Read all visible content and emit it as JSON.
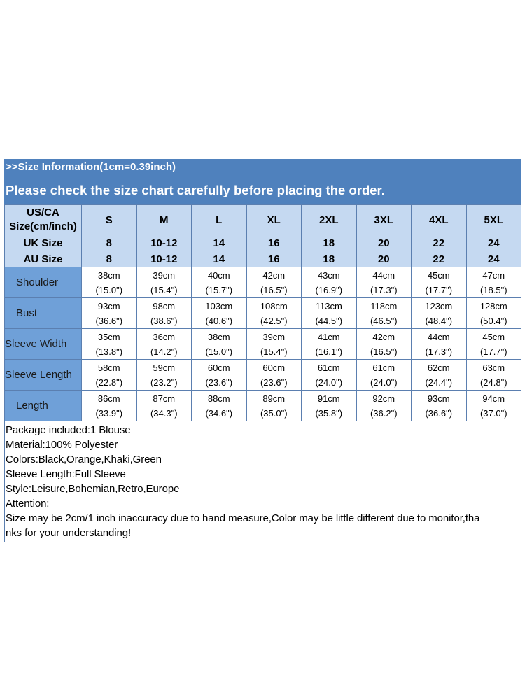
{
  "header": {
    "info": ">>Size Information(1cm=0.39inch)",
    "notice": "Please check the size chart carefully before placing the order."
  },
  "table": {
    "corner_line1": "US/CA",
    "corner_line2": "Size(cm/inch)",
    "sizes": [
      "S",
      "M",
      "L",
      "XL",
      "2XL",
      "3XL",
      "4XL",
      "5XL"
    ],
    "uk": {
      "label": "UK Size",
      "values": [
        "8",
        "10-12",
        "14",
        "16",
        "18",
        "20",
        "22",
        "24"
      ]
    },
    "au": {
      "label": "AU Size",
      "values": [
        "8",
        "10-12",
        "14",
        "16",
        "18",
        "20",
        "22",
        "24"
      ]
    },
    "measurements": [
      {
        "label": "Shoulder",
        "cm": [
          "38cm",
          "39cm",
          "40cm",
          "42cm",
          "43cm",
          "44cm",
          "45cm",
          "47cm"
        ],
        "inch": [
          "(15.0\")",
          "(15.4\")",
          "(15.7\")",
          "(16.5\")",
          "(16.9\")",
          "(17.3\")",
          "(17.7\")",
          "(18.5\")"
        ]
      },
      {
        "label": "Bust",
        "cm": [
          "93cm",
          "98cm",
          "103cm",
          "108cm",
          "113cm",
          "118cm",
          "123cm",
          "128cm"
        ],
        "inch": [
          "(36.6\")",
          "(38.6\")",
          "(40.6\")",
          "(42.5\")",
          "(44.5\")",
          "(46.5\")",
          "(48.4\")",
          "(50.4\")"
        ]
      },
      {
        "label": "Sleeve Width",
        "cm": [
          "35cm",
          "36cm",
          "38cm",
          "39cm",
          "41cm",
          "42cm",
          "44cm",
          "45cm"
        ],
        "inch": [
          "(13.8\")",
          "(14.2\")",
          "(15.0\")",
          "(15.4\")",
          "(16.1\")",
          "(16.5\")",
          "(17.3\")",
          "(17.7\")"
        ]
      },
      {
        "label": "Sleeve Length",
        "cm": [
          "58cm",
          "59cm",
          "60cm",
          "60cm",
          "61cm",
          "61cm",
          "62cm",
          "63cm"
        ],
        "inch": [
          "(22.8\")",
          "(23.2\")",
          "(23.6\")",
          "(23.6\")",
          "(24.0\")",
          "(24.0\")",
          "(24.4\")",
          "(24.8\")"
        ]
      },
      {
        "label": "Length",
        "cm": [
          "86cm",
          "87cm",
          "88cm",
          "89cm",
          "91cm",
          "92cm",
          "93cm",
          "94cm"
        ],
        "inch": [
          "(33.9\")",
          "(34.3\")",
          "(34.6\")",
          "(35.0\")",
          "(35.8\")",
          "(36.2\")",
          "(36.6\")",
          "(37.0\")"
        ]
      }
    ]
  },
  "notes": [
    "Package included:1 Blouse",
    "Material:100% Polyester",
    "Colors:Black,Orange,Khaki,Green",
    "Sleeve Length:Full Sleeve",
    "Style:Leisure,Bohemian,Retro,Europe",
    "Attention:",
    "Size may be 2cm/1 inch inaccuracy due to hand measure,Color may be little different due to monitor,tha",
    "nks for your understanding!"
  ],
  "colors": {
    "banner": "#4f81bd",
    "header_cell": "#c5d9f1",
    "label_cell": "#6fa0d8",
    "border": "#5b7fb0"
  }
}
